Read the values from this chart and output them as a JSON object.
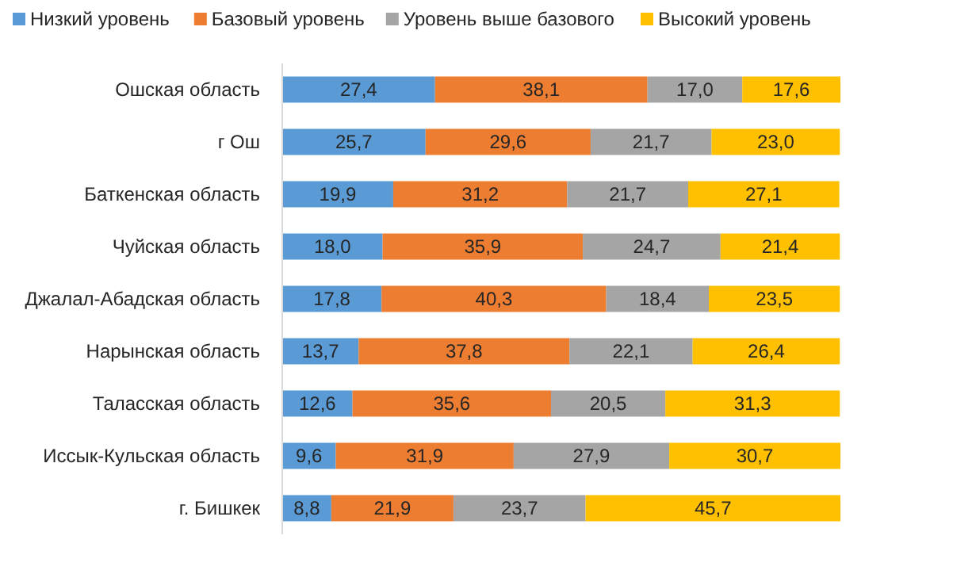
{
  "chart_data": {
    "type": "bar",
    "orientation": "horizontal",
    "stacked": true,
    "legend": "top",
    "categories": [
      "Ошская область",
      "г Ош",
      "Баткенская область",
      "Чуйская область",
      "Джалал-Абадская область",
      "Нарынская область",
      "Таласская область",
      "Иссык-Кульская область",
      "г. Бишкек"
    ],
    "series": [
      {
        "name": "Низкий уровень",
        "color": "#5b9bd5",
        "values": [
          27.4,
          25.7,
          19.9,
          18.0,
          17.8,
          13.7,
          12.6,
          9.6,
          8.8
        ],
        "value_labels": [
          "27,4",
          "25,7",
          "19,9",
          "18,0",
          "17,8",
          "13,7",
          "12,6",
          "9,6",
          "8,8"
        ]
      },
      {
        "name": "Базовый уровень",
        "color": "#ed7d31",
        "values": [
          38.1,
          29.6,
          31.2,
          35.9,
          40.3,
          37.8,
          35.6,
          31.9,
          21.9
        ],
        "value_labels": [
          "38,1",
          "29,6",
          "31,2",
          "35,9",
          "40,3",
          "37,8",
          "35,6",
          "31,9",
          "21,9"
        ]
      },
      {
        "name": "Уровень выше базового",
        "color": "#a5a5a5",
        "values": [
          17.0,
          21.7,
          21.7,
          24.7,
          18.4,
          22.1,
          20.5,
          27.9,
          23.7
        ],
        "value_labels": [
          "17,0",
          "21,7",
          "21,7",
          "24,7",
          "18,4",
          "22,1",
          "20,5",
          "27,9",
          "23,7"
        ]
      },
      {
        "name": "Высокий уровень",
        "color": "#ffc000",
        "values": [
          17.6,
          23.0,
          27.1,
          21.4,
          23.5,
          26.4,
          31.3,
          30.7,
          45.7
        ],
        "value_labels": [
          "17,6",
          "23,0",
          "27,1",
          "21,4",
          "23,5",
          "26,4",
          "31,3",
          "30,7",
          "45,7"
        ]
      }
    ]
  }
}
